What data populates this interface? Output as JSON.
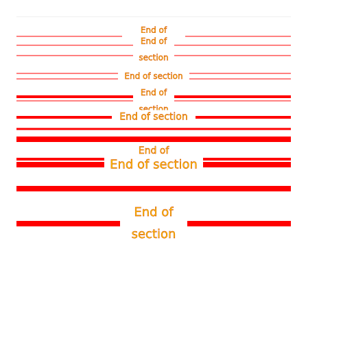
{
  "colors": {
    "rule": "#ff0000",
    "label_text": "#ffcc00",
    "label_outline": "#cc3300",
    "background": "#ffffff"
  },
  "dividers": [
    {
      "label": "End of section"
    },
    {
      "label": "End of section"
    },
    {
      "label": "End of section"
    },
    {
      "label": "End of section"
    },
    {
      "label": "End of section"
    },
    {
      "label": "End of section"
    },
    {
      "label": "End of section"
    },
    {
      "label": "End of section"
    },
    {
      "label": "End of section"
    }
  ]
}
